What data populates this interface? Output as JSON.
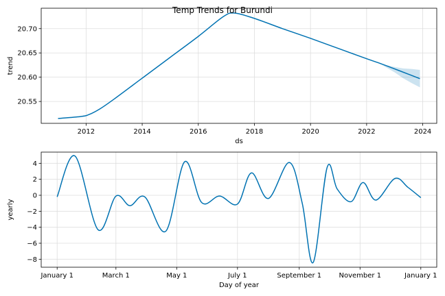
{
  "figure": {
    "title": "Temp Trends for Burundi"
  },
  "chart_data": [
    {
      "type": "line",
      "ylabel": "trend",
      "xlabel": "ds",
      "xlim": [
        2010.4,
        2024.5
      ],
      "ylim": [
        20.505,
        20.742
      ],
      "xticks": [
        2012,
        2014,
        2016,
        2018,
        2020,
        2022,
        2024
      ],
      "yticks": [
        20.55,
        20.6,
        20.65,
        20.7
      ],
      "ytick_labels": [
        "20.55",
        "20.60",
        "20.65",
        "20.70"
      ],
      "grid": true,
      "series": [
        {
          "x": [
            2011.0,
            2011.8,
            2012.1,
            2012.5,
            2013.0,
            2014.0,
            2015.0,
            2016.0,
            2016.9,
            2017.3,
            2018.0,
            2019.0,
            2020.0,
            2021.0,
            2022.0,
            2022.5,
            2023.0,
            2023.5,
            2023.9
          ],
          "y": [
            20.515,
            20.519,
            20.523,
            20.535,
            20.555,
            20.598,
            20.641,
            20.684,
            20.725,
            20.732,
            20.721,
            20.7,
            20.68,
            20.659,
            20.638,
            20.628,
            20.617,
            20.606,
            20.597
          ],
          "color": "#0072B2"
        }
      ],
      "uncertainty_band": {
        "x": [
          2022.4,
          2022.7,
          2023.0,
          2023.3,
          2023.6,
          2023.9
        ],
        "upper": [
          20.63,
          20.625,
          20.621,
          20.618,
          20.617,
          20.615
        ],
        "lower": [
          20.63,
          20.62,
          20.61,
          20.598,
          20.588,
          20.579
        ],
        "color": "#0072B2"
      }
    },
    {
      "type": "line",
      "ylabel": "yearly",
      "xlabel": "Day of year",
      "xlim": [
        -16,
        381
      ],
      "ylim": [
        -9,
        5.4
      ],
      "xticks": [
        0,
        59,
        120,
        181,
        243,
        304,
        365
      ],
      "xtick_labels": [
        "January 1",
        "March 1",
        "May 1",
        "July 1",
        "September 1",
        "November 1",
        "January 1"
      ],
      "yticks": [
        -8,
        -6,
        -4,
        -2,
        0,
        2,
        4
      ],
      "ytick_labels": [
        "−8",
        "−6",
        "−4",
        "−2",
        "0",
        "2",
        "4"
      ],
      "grid": true,
      "series": [
        {
          "x": [
            0,
            18,
            41,
            59,
            73,
            88,
            109,
            128,
            145,
            163,
            181,
            195,
            212,
            233,
            246,
            257,
            271,
            281,
            295,
            307,
            320,
            339,
            352,
            365
          ],
          "y": [
            -0.2,
            4.9,
            -4.3,
            -0.1,
            -1.3,
            -0.2,
            -4.5,
            4.2,
            -0.9,
            -0.1,
            -1.1,
            2.8,
            -0.4,
            4.1,
            -1.0,
            -8.4,
            3.5,
            0.8,
            -0.8,
            1.6,
            -0.6,
            2.1,
            1.0,
            -0.3
          ],
          "color": "#0072B2"
        }
      ]
    }
  ]
}
